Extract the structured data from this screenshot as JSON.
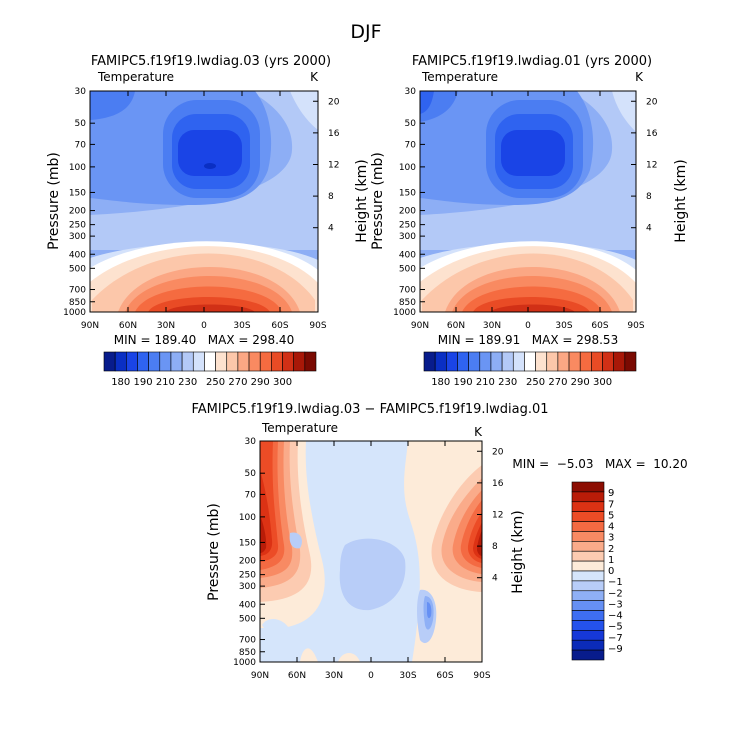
{
  "figure": {
    "title": "DJF"
  },
  "colors": {
    "abs_scale": [
      "#081c8c",
      "#0a2fc4",
      "#1a44e6",
      "#2f63f0",
      "#4b7df2",
      "#6a95f4",
      "#8daef5",
      "#b3c9f7",
      "#d4e2fb",
      "#ffffff",
      "#fde2cf",
      "#fcc7aa",
      "#fba784",
      "#f98a61",
      "#f56b40",
      "#e94b25",
      "#d13016",
      "#a81808",
      "#7a0a02"
    ],
    "diff_scale": [
      "#081c8c",
      "#0b2bb8",
      "#1638d8",
      "#2452ec",
      "#3e6ef2",
      "#6690f4",
      "#8fb0f6",
      "#b8cdf8",
      "#d5e5fb",
      "#fdebd9",
      "#fccbb1",
      "#faab8a",
      "#f88a63",
      "#f46a42",
      "#ec4c26",
      "#dc3214",
      "#b91c08",
      "#8c0d02"
    ]
  },
  "chart_data": [
    {
      "type": "heatmap",
      "id": "ctrl",
      "title": "FAMIPC5.f19f19.lwdiag.03 (yrs 2000)",
      "subtitle_left": "Temperature",
      "subtitle_right": "K",
      "ylabel": "Pressure (mb)",
      "ylabel_right": "Height (km)",
      "x_ticks": [
        "90N",
        "60N",
        "30N",
        "0",
        "30S",
        "60S",
        "90S"
      ],
      "x_range": [
        90,
        -90
      ],
      "y_ticks": [
        30,
        50,
        70,
        100,
        150,
        200,
        250,
        300,
        400,
        500,
        700,
        850,
        1000
      ],
      "y_range": [
        30,
        1000
      ],
      "y_scale": "log",
      "height_ticks": [
        "20",
        "16",
        "12",
        "8",
        "4"
      ],
      "height_ticks_pressure": [
        35.3,
        58.3,
        96.3,
        159,
        262.5
      ],
      "stats": "MIN = 189.40   MAX = 298.40",
      "colorbar_labels": [
        "180",
        "190",
        "210",
        "230",
        "250",
        "270",
        "290",
        "300"
      ]
    },
    {
      "type": "heatmap",
      "id": "test",
      "title": "FAMIPC5.f19f19.lwdiag.01 (yrs 2000)",
      "subtitle_left": "Temperature",
      "subtitle_right": "K",
      "ylabel": "Pressure (mb)",
      "ylabel_right": "Height (km)",
      "x_ticks": [
        "90N",
        "60N",
        "30N",
        "0",
        "30S",
        "60S",
        "90S"
      ],
      "x_range": [
        90,
        -90
      ],
      "y_ticks": [
        30,
        50,
        70,
        100,
        150,
        200,
        250,
        300,
        400,
        500,
        700,
        850,
        1000
      ],
      "y_range": [
        30,
        1000
      ],
      "y_scale": "log",
      "height_ticks": [
        "20",
        "16",
        "12",
        "8",
        "4"
      ],
      "height_ticks_pressure": [
        35.3,
        58.3,
        96.3,
        159,
        262.5
      ],
      "stats": "MIN = 189.91   MAX = 298.53",
      "colorbar_labels": [
        "180",
        "190",
        "210",
        "230",
        "250",
        "270",
        "290",
        "300"
      ]
    },
    {
      "type": "heatmap",
      "id": "diff",
      "title": "FAMIPC5.f19f19.lwdiag.03 − FAMIPC5.f19f19.lwdiag.01",
      "subtitle_left": "Temperature",
      "subtitle_right": "K",
      "ylabel": "Pressure (mb)",
      "ylabel_right": "Height (km)",
      "x_ticks": [
        "90N",
        "60N",
        "30N",
        "0",
        "30S",
        "60S",
        "90S"
      ],
      "x_range": [
        90,
        -90
      ],
      "y_ticks": [
        30,
        50,
        70,
        100,
        150,
        200,
        250,
        300,
        400,
        500,
        700,
        850,
        1000
      ],
      "y_range": [
        30,
        1000
      ],
      "y_scale": "log",
      "height_ticks": [
        "20",
        "16",
        "12",
        "8",
        "4"
      ],
      "height_ticks_pressure": [
        35.3,
        58.3,
        96.3,
        159,
        262.5
      ],
      "stats": "MIN =  −5.03   MAX =  10.20",
      "colorbar_labels": [
        "9",
        "7",
        "5",
        "4",
        "3",
        "2",
        "1",
        "0",
        "−1",
        "−2",
        "−3",
        "−4",
        "−5",
        "−7",
        "−9"
      ]
    }
  ]
}
